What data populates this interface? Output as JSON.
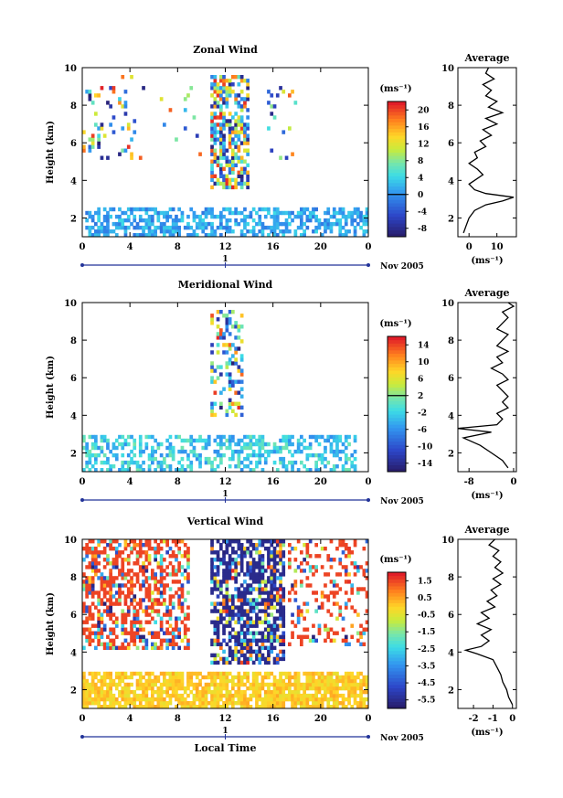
{
  "figure": {
    "xlabel": "Local Time",
    "date_label": "Nov 2005",
    "ylabel": "Height (km)",
    "day_marker": "1"
  },
  "chart_data": [
    {
      "type": "heatmap",
      "title": "Zonal Wind",
      "ylabel": "Height (km)",
      "xlabel": "",
      "x_ticks": [
        "0",
        "4",
        "8",
        "12",
        "16",
        "20",
        "0"
      ],
      "xlim": [
        0,
        24
      ],
      "ylim": [
        1,
        10
      ],
      "y_ticks": [
        2,
        4,
        6,
        8,
        10
      ],
      "colorbar": {
        "unit": "(ms⁻¹)",
        "ticks": [
          20,
          16,
          12,
          8,
          4,
          0,
          -4,
          -8
        ],
        "range": [
          -10,
          22
        ],
        "zero_line": 0
      },
      "average": {
        "title": "Average",
        "unit": "(ms⁻¹)",
        "x_ticks": [
          0,
          10
        ],
        "xlim": [
          -4,
          17
        ],
        "profile": [
          [
            1.2,
            -2
          ],
          [
            1.6,
            -1
          ],
          [
            2.0,
            0
          ],
          [
            2.4,
            2
          ],
          [
            2.7,
            6
          ],
          [
            2.9,
            12
          ],
          [
            3.1,
            16
          ],
          [
            3.3,
            6
          ],
          [
            3.5,
            2
          ],
          [
            3.8,
            0
          ],
          [
            4.0,
            2
          ],
          [
            4.3,
            5
          ],
          [
            4.6,
            3
          ],
          [
            4.9,
            0
          ],
          [
            5.2,
            3
          ],
          [
            5.5,
            2
          ],
          [
            5.8,
            6
          ],
          [
            6.1,
            4
          ],
          [
            6.4,
            8
          ],
          [
            6.7,
            5
          ],
          [
            7.0,
            10
          ],
          [
            7.3,
            6
          ],
          [
            7.6,
            12
          ],
          [
            7.9,
            7
          ],
          [
            8.2,
            10
          ],
          [
            8.5,
            6
          ],
          [
            8.8,
            8
          ],
          [
            9.1,
            5
          ],
          [
            9.4,
            9
          ],
          [
            9.7,
            6
          ],
          [
            10.0,
            7
          ]
        ]
      }
    },
    {
      "type": "heatmap",
      "title": "Meridional Wind",
      "ylabel": "Height (km)",
      "xlabel": "",
      "x_ticks": [
        "0",
        "4",
        "8",
        "12",
        "16",
        "20",
        "0"
      ],
      "xlim": [
        0,
        24
      ],
      "ylim": [
        1,
        10
      ],
      "y_ticks": [
        2,
        4,
        6,
        8,
        10
      ],
      "colorbar": {
        "unit": "(ms⁻¹)",
        "ticks": [
          14,
          10,
          6,
          2,
          -2,
          -6,
          -10,
          -14
        ],
        "range": [
          -16,
          16
        ],
        "zero_line": 2
      },
      "average": {
        "title": "Average",
        "unit": "(ms⁻¹)",
        "x_ticks": [
          -8,
          0
        ],
        "xlim": [
          -10,
          0.5
        ],
        "profile": [
          [
            1.2,
            -1
          ],
          [
            1.6,
            -2
          ],
          [
            2.0,
            -4
          ],
          [
            2.4,
            -6
          ],
          [
            2.8,
            -9
          ],
          [
            3.1,
            -4
          ],
          [
            3.3,
            -10
          ],
          [
            3.5,
            -3
          ],
          [
            3.8,
            -2
          ],
          [
            4.1,
            -3
          ],
          [
            4.4,
            -1
          ],
          [
            4.7,
            -2
          ],
          [
            5.0,
            -1
          ],
          [
            5.3,
            -2
          ],
          [
            5.6,
            -3
          ],
          [
            5.9,
            -1
          ],
          [
            6.2,
            -2
          ],
          [
            6.5,
            -4
          ],
          [
            6.8,
            -2
          ],
          [
            7.1,
            -3
          ],
          [
            7.4,
            -1
          ],
          [
            7.7,
            -3
          ],
          [
            8.0,
            -2
          ],
          [
            8.3,
            -1
          ],
          [
            8.6,
            -3
          ],
          [
            8.9,
            -2
          ],
          [
            9.2,
            -1
          ],
          [
            9.5,
            -2
          ],
          [
            9.8,
            0
          ],
          [
            10.0,
            -1
          ]
        ]
      }
    },
    {
      "type": "heatmap",
      "title": "Vertical Wind",
      "ylabel": "Height (km)",
      "xlabel": "Local Time",
      "x_ticks": [
        "0",
        "4",
        "8",
        "12",
        "16",
        "20",
        "0"
      ],
      "xlim": [
        0,
        24
      ],
      "ylim": [
        1,
        10
      ],
      "y_ticks": [
        2,
        4,
        6,
        8,
        10
      ],
      "colorbar": {
        "unit": "(ms⁻¹)",
        "ticks": [
          1.5,
          0.5,
          -0.5,
          -1.5,
          -2.5,
          -3.5,
          -4.5,
          -5.5
        ],
        "range": [
          -6,
          2
        ]
      },
      "average": {
        "title": "Average",
        "unit": "(ms⁻¹)",
        "x_ticks": [
          -2,
          -1,
          0
        ],
        "xlim": [
          -2.8,
          0.2
        ],
        "profile": [
          [
            1.2,
            0
          ],
          [
            1.6,
            -0.2
          ],
          [
            2.0,
            -0.3
          ],
          [
            2.4,
            -0.5
          ],
          [
            2.8,
            -0.6
          ],
          [
            3.2,
            -0.8
          ],
          [
            3.6,
            -1.0
          ],
          [
            3.9,
            -1.8
          ],
          [
            4.1,
            -2.4
          ],
          [
            4.3,
            -1.6
          ],
          [
            4.6,
            -1.2
          ],
          [
            4.9,
            -1.6
          ],
          [
            5.2,
            -1.1
          ],
          [
            5.5,
            -1.8
          ],
          [
            5.8,
            -1.2
          ],
          [
            6.1,
            -1.6
          ],
          [
            6.4,
            -0.9
          ],
          [
            6.7,
            -1.3
          ],
          [
            7.0,
            -0.8
          ],
          [
            7.3,
            -1.1
          ],
          [
            7.6,
            -0.6
          ],
          [
            7.9,
            -1.0
          ],
          [
            8.2,
            -0.5
          ],
          [
            8.5,
            -0.9
          ],
          [
            8.8,
            -0.6
          ],
          [
            9.1,
            -1.0
          ],
          [
            9.4,
            -0.7
          ],
          [
            9.7,
            -1.2
          ],
          [
            10.0,
            -0.9
          ]
        ]
      }
    }
  ]
}
